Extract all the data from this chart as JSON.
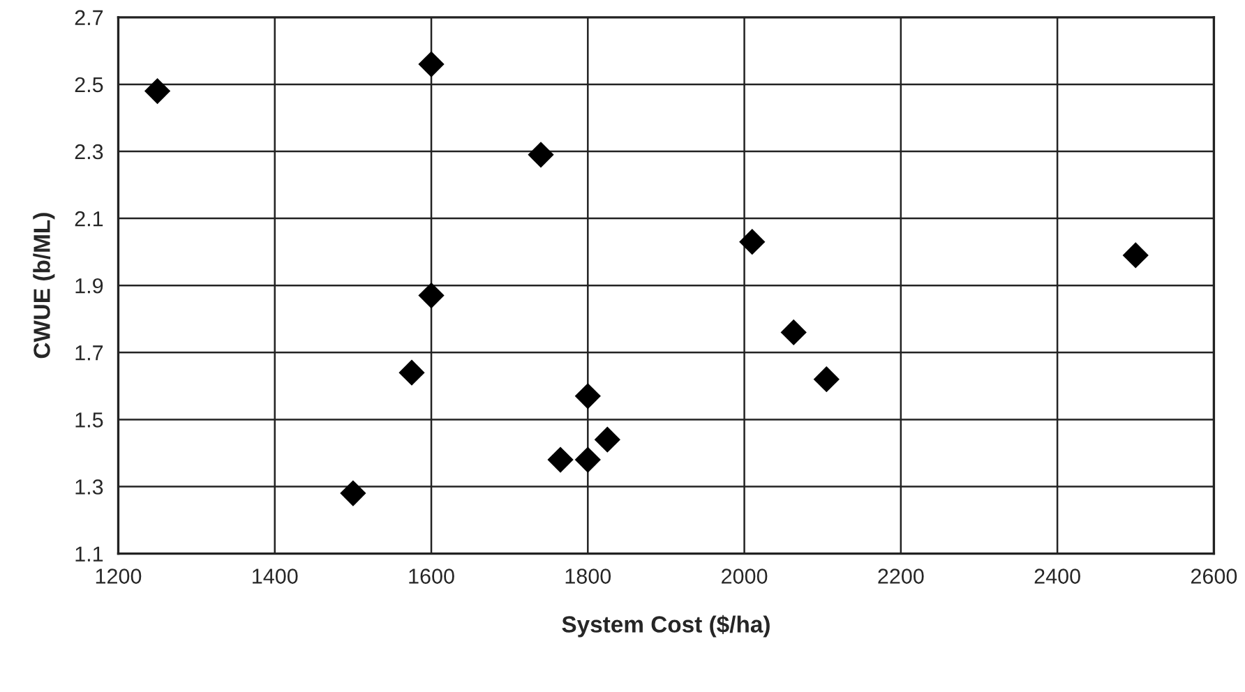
{
  "chart_data": {
    "type": "scatter",
    "xlabel": "System Cost ($/ha)",
    "ylabel": "CWUE (b/ML)",
    "x": [
      1250,
      1600,
      1740,
      1600,
      1575,
      1500,
      1800,
      1765,
      1800,
      1825,
      2010,
      2063,
      2105,
      2500
    ],
    "series": [
      {
        "color": "#000000",
        "values": [
          2.48,
          2.56,
          2.29,
          1.87,
          1.64,
          1.28,
          1.57,
          1.38,
          1.38,
          1.44,
          2.03,
          1.76,
          1.62,
          1.99
        ]
      }
    ],
    "xlim": [
      1200,
      2600
    ],
    "xticks": [
      1200,
      1400,
      1600,
      1800,
      2000,
      2200,
      2400,
      2600
    ],
    "ylim": [
      1.1,
      2.7
    ],
    "yticks": [
      1.1,
      1.3,
      1.5,
      1.7,
      1.9,
      2.1,
      2.3,
      2.5,
      2.7
    ],
    "grid": true,
    "marker": "diamond"
  }
}
